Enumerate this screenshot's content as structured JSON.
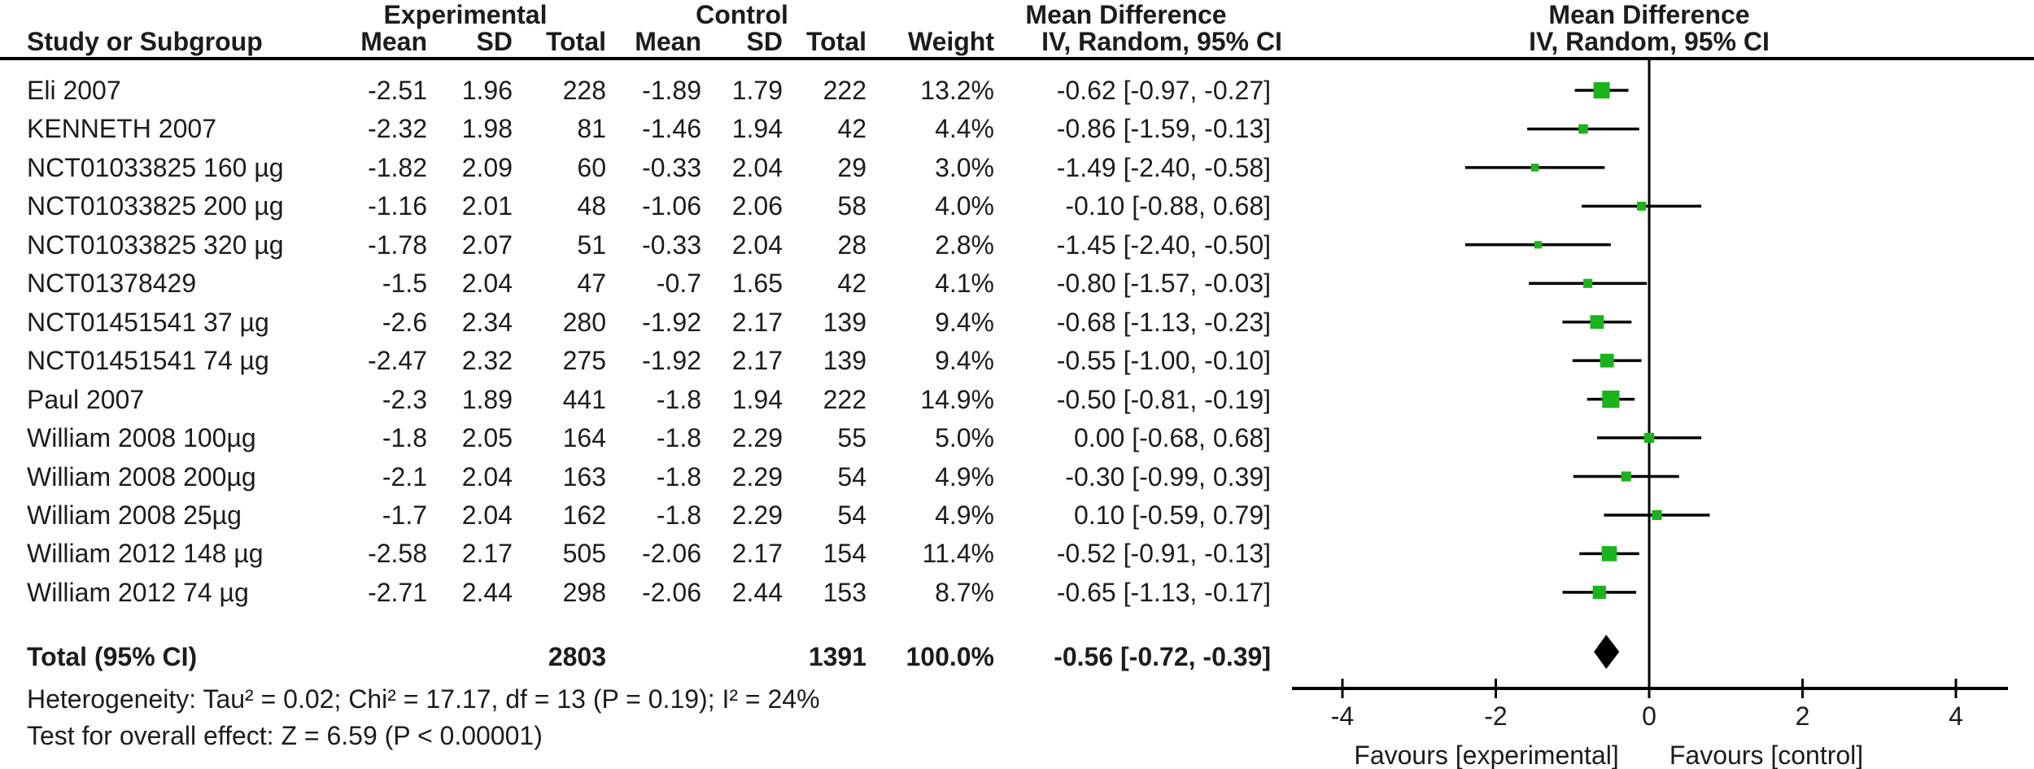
{
  "table": {
    "group_headers": {
      "experimental": "Experimental",
      "control": "Control",
      "md_text": "Mean Difference",
      "md_plot": "Mean Difference"
    },
    "col_headers": {
      "study": "Study or Subgroup",
      "mean_e": "Mean",
      "sd_e": "SD",
      "total_e": "Total",
      "mean_c": "Mean",
      "sd_c": "SD",
      "total_c": "Total",
      "weight": "Weight",
      "iv_text": "IV, Random, 95% CI",
      "iv_plot": "IV, Random, 95% CI"
    },
    "rows": [
      {
        "study": "Eli 2007",
        "mean_e": "-2.51",
        "sd_e": "1.96",
        "total_e": "228",
        "mean_c": "-1.89",
        "sd_c": "1.79",
        "total_c": "222",
        "weight": "13.2%",
        "ci": "-0.62 [-0.97, -0.27]"
      },
      {
        "study": "KENNETH 2007",
        "mean_e": "-2.32",
        "sd_e": "1.98",
        "total_e": "81",
        "mean_c": "-1.46",
        "sd_c": "1.94",
        "total_c": "42",
        "weight": "4.4%",
        "ci": "-0.86 [-1.59, -0.13]"
      },
      {
        "study": "NCT01033825 160 µg",
        "mean_e": "-1.82",
        "sd_e": "2.09",
        "total_e": "60",
        "mean_c": "-0.33",
        "sd_c": "2.04",
        "total_c": "29",
        "weight": "3.0%",
        "ci": "-1.49 [-2.40, -0.58]"
      },
      {
        "study": "NCT01033825 200 µg",
        "mean_e": "-1.16",
        "sd_e": "2.01",
        "total_e": "48",
        "mean_c": "-1.06",
        "sd_c": "2.06",
        "total_c": "58",
        "weight": "4.0%",
        "ci": "-0.10 [-0.88, 0.68]"
      },
      {
        "study": "NCT01033825 320 µg",
        "mean_e": "-1.78",
        "sd_e": "2.07",
        "total_e": "51",
        "mean_c": "-0.33",
        "sd_c": "2.04",
        "total_c": "28",
        "weight": "2.8%",
        "ci": "-1.45 [-2.40, -0.50]"
      },
      {
        "study": "NCT01378429",
        "mean_e": "-1.5",
        "sd_e": "2.04",
        "total_e": "47",
        "mean_c": "-0.7",
        "sd_c": "1.65",
        "total_c": "42",
        "weight": "4.1%",
        "ci": "-0.80 [-1.57, -0.03]"
      },
      {
        "study": "NCT01451541 37 µg",
        "mean_e": "-2.6",
        "sd_e": "2.34",
        "total_e": "280",
        "mean_c": "-1.92",
        "sd_c": "2.17",
        "total_c": "139",
        "weight": "9.4%",
        "ci": "-0.68 [-1.13, -0.23]"
      },
      {
        "study": "NCT01451541 74 µg",
        "mean_e": "-2.47",
        "sd_e": "2.32",
        "total_e": "275",
        "mean_c": "-1.92",
        "sd_c": "2.17",
        "total_c": "139",
        "weight": "9.4%",
        "ci": "-0.55 [-1.00, -0.10]"
      },
      {
        "study": "Paul 2007",
        "mean_e": "-2.3",
        "sd_e": "1.89",
        "total_e": "441",
        "mean_c": "-1.8",
        "sd_c": "1.94",
        "total_c": "222",
        "weight": "14.9%",
        "ci": "-0.50 [-0.81, -0.19]"
      },
      {
        "study": "William 2008 100µg",
        "mean_e": "-1.8",
        "sd_e": "2.05",
        "total_e": "164",
        "mean_c": "-1.8",
        "sd_c": "2.29",
        "total_c": "55",
        "weight": "5.0%",
        "ci": "0.00 [-0.68, 0.68]"
      },
      {
        "study": "William 2008 200µg",
        "mean_e": "-2.1",
        "sd_e": "2.04",
        "total_e": "163",
        "mean_c": "-1.8",
        "sd_c": "2.29",
        "total_c": "54",
        "weight": "4.9%",
        "ci": "-0.30 [-0.99, 0.39]"
      },
      {
        "study": "William 2008 25µg",
        "mean_e": "-1.7",
        "sd_e": "2.04",
        "total_e": "162",
        "mean_c": "-1.8",
        "sd_c": "2.29",
        "total_c": "54",
        "weight": "4.9%",
        "ci": "0.10 [-0.59, 0.79]"
      },
      {
        "study": "William 2012 148 µg",
        "mean_e": "-2.58",
        "sd_e": "2.17",
        "total_e": "505",
        "mean_c": "-2.06",
        "sd_c": "2.17",
        "total_c": "154",
        "weight": "11.4%",
        "ci": "-0.52 [-0.91, -0.13]"
      },
      {
        "study": "William 2012 74 µg",
        "mean_e": "-2.71",
        "sd_e": "2.44",
        "total_e": "298",
        "mean_c": "-2.06",
        "sd_c": "2.44",
        "total_c": "153",
        "weight": "8.7%",
        "ci": "-0.65 [-1.13, -0.17]"
      }
    ],
    "total": {
      "label": "Total (95% CI)",
      "total_e": "2803",
      "total_c": "1391",
      "weight": "100.0%",
      "ci": "-0.56 [-0.72, -0.39]"
    },
    "heterogeneity": "Heterogeneity: Tau² = 0.02; Chi² = 17.17, df = 13 (P = 0.19); I² = 24%",
    "overall_effect": "Test for overall effect: Z = 6.59 (P < 0.00001)"
  },
  "chart_data": {
    "type": "forest",
    "effect_measure": "Mean Difference",
    "method": "IV, Random, 95% CI",
    "x_ticks": [
      -4,
      -2,
      0,
      2,
      4
    ],
    "axis_range": [
      -4.65,
      4.68
    ],
    "favours_left": "Favours [experimental]",
    "favours_right": "Favours [control]",
    "marker_color": "#1cb21c",
    "line_color": "#000000",
    "diamond_color": "#000000",
    "studies": [
      {
        "name": "Eli 2007",
        "md": -0.62,
        "ci_low": -0.97,
        "ci_high": -0.27,
        "weight": 13.2
      },
      {
        "name": "KENNETH 2007",
        "md": -0.86,
        "ci_low": -1.59,
        "ci_high": -0.13,
        "weight": 4.4
      },
      {
        "name": "NCT01033825 160 µg",
        "md": -1.49,
        "ci_low": -2.4,
        "ci_high": -0.58,
        "weight": 3.0
      },
      {
        "name": "NCT01033825 200 µg",
        "md": -0.1,
        "ci_low": -0.88,
        "ci_high": 0.68,
        "weight": 4.0
      },
      {
        "name": "NCT01033825 320 µg",
        "md": -1.45,
        "ci_low": -2.4,
        "ci_high": -0.5,
        "weight": 2.8
      },
      {
        "name": "NCT01378429",
        "md": -0.8,
        "ci_low": -1.57,
        "ci_high": -0.03,
        "weight": 4.1
      },
      {
        "name": "NCT01451541 37 µg",
        "md": -0.68,
        "ci_low": -1.13,
        "ci_high": -0.23,
        "weight": 9.4
      },
      {
        "name": "NCT01451541 74 µg",
        "md": -0.55,
        "ci_low": -1.0,
        "ci_high": -0.1,
        "weight": 9.4
      },
      {
        "name": "Paul 2007",
        "md": -0.5,
        "ci_low": -0.81,
        "ci_high": -0.19,
        "weight": 14.9
      },
      {
        "name": "William 2008 100µg",
        "md": 0.0,
        "ci_low": -0.68,
        "ci_high": 0.68,
        "weight": 5.0
      },
      {
        "name": "William 2008 200µg",
        "md": -0.3,
        "ci_low": -0.99,
        "ci_high": 0.39,
        "weight": 4.9
      },
      {
        "name": "William 2008 25µg",
        "md": 0.1,
        "ci_low": -0.59,
        "ci_high": 0.79,
        "weight": 4.9
      },
      {
        "name": "William 2012 148 µg",
        "md": -0.52,
        "ci_low": -0.91,
        "ci_high": -0.13,
        "weight": 11.4
      },
      {
        "name": "William 2012 74 µg",
        "md": -0.65,
        "ci_low": -1.13,
        "ci_high": -0.17,
        "weight": 8.7
      }
    ],
    "total": {
      "md": -0.56,
      "ci_low": -0.72,
      "ci_high": -0.39,
      "weight": 100.0
    }
  }
}
